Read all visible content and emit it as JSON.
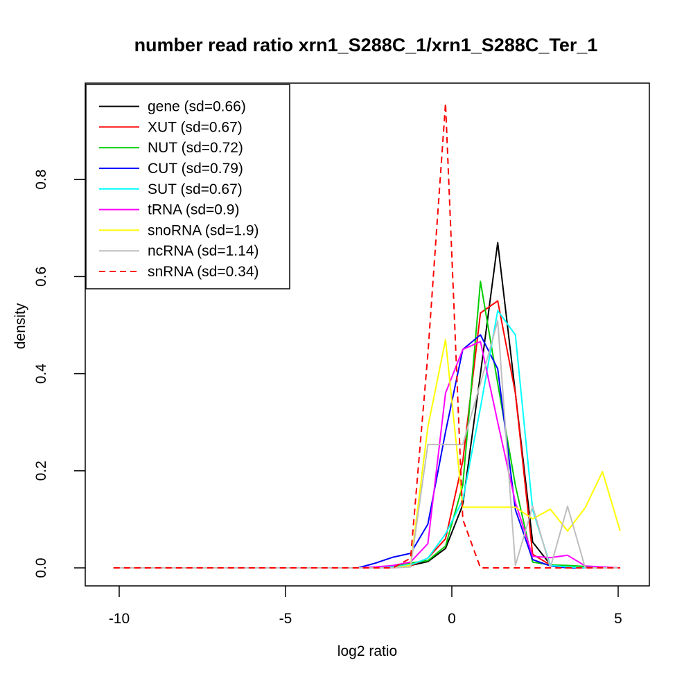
{
  "colors": {
    "background": "#FFFFFF",
    "foreground": "#000000"
  },
  "chart_data": {
    "type": "line",
    "title": "number read ratio xrn1_S288C_1/xrn1_S288C_Ter_1",
    "xlabel": "log2 ratio",
    "ylabel": "density",
    "grid": false,
    "legend_position": "top-left",
    "xlim": [
      -11.0,
      5.95
    ],
    "ylim": [
      0,
      1.0
    ],
    "x_ticks": {
      "values": [
        -10,
        -5,
        0,
        5
      ],
      "labels": [
        "-10",
        "-5",
        "0",
        "5"
      ]
    },
    "y_ticks": {
      "values": [
        0,
        0.2,
        0.4,
        0.6,
        0.8
      ],
      "labels": [
        "0.0",
        "0.2",
        "0.4",
        "0.6",
        "0.8"
      ]
    },
    "x": [
      -10.17,
      -9.64,
      -9.12,
      -8.59,
      -8.07,
      -7.54,
      -7.02,
      -6.49,
      -5.97,
      -5.44,
      -4.92,
      -4.39,
      -3.87,
      -3.34,
      -2.82,
      -2.29,
      -1.77,
      -1.24,
      -0.72,
      -0.19,
      0.33,
      0.86,
      1.38,
      1.91,
      2.43,
      2.96,
      3.48,
      4.01,
      4.53,
      5.06
    ],
    "series": [
      {
        "name": "gene",
        "sd": 0.66,
        "legend_label": "gene (sd=0.66)",
        "color": "#000000",
        "dash": false,
        "values": [
          0,
          0,
          0,
          0,
          0,
          0,
          0,
          0,
          0,
          0,
          0,
          0,
          0,
          0,
          0,
          0,
          0.003,
          0.005,
          0.013,
          0.04,
          0.13,
          0.4,
          0.67,
          0.36,
          0.053,
          0.007,
          0,
          0,
          0,
          0
        ]
      },
      {
        "name": "XUT",
        "sd": 0.67,
        "legend_label": "XUT (sd=0.67)",
        "color": "#FF0000",
        "dash": false,
        "values": [
          0,
          0,
          0,
          0,
          0,
          0,
          0,
          0,
          0,
          0,
          0,
          0,
          0,
          0,
          0,
          0,
          0,
          0.004,
          0.02,
          0.06,
          0.22,
          0.525,
          0.55,
          0.36,
          0.028,
          0.006,
          0.002,
          0,
          0,
          0
        ]
      },
      {
        "name": "NUT",
        "sd": 0.72,
        "legend_label": "NUT (sd=0.72)",
        "color": "#00CD00",
        "dash": false,
        "values": [
          0,
          0,
          0,
          0,
          0,
          0,
          0,
          0,
          0,
          0,
          0,
          0,
          0,
          0,
          0,
          0,
          0.004,
          0.01,
          0.015,
          0.045,
          0.17,
          0.59,
          0.38,
          0.17,
          0.012,
          0.006,
          0.005,
          0.003,
          0,
          0
        ]
      },
      {
        "name": "CUT",
        "sd": 0.79,
        "legend_label": "CUT (sd=0.79)",
        "color": "#0000FF",
        "dash": false,
        "values": [
          0,
          0,
          0,
          0,
          0,
          0,
          0,
          0,
          0,
          0,
          0,
          0,
          0,
          0,
          0,
          0.01,
          0.022,
          0.03,
          0.09,
          0.28,
          0.45,
          0.48,
          0.41,
          0.12,
          0.017,
          0.004,
          0,
          0,
          0,
          0
        ]
      },
      {
        "name": "SUT",
        "sd": 0.67,
        "legend_label": "SUT (sd=0.67)",
        "color": "#00FFFF",
        "dash": false,
        "values": [
          0,
          0,
          0,
          0,
          0,
          0,
          0,
          0,
          0,
          0,
          0,
          0,
          0,
          0,
          0,
          0,
          0.002,
          0.006,
          0.02,
          0.07,
          0.14,
          0.33,
          0.53,
          0.48,
          0.12,
          0.005,
          0.002,
          0,
          0,
          0
        ]
      },
      {
        "name": "tRNA",
        "sd": 0.9,
        "legend_label": "tRNA (sd=0.9)",
        "color": "#FF00FF",
        "dash": false,
        "values": [
          0,
          0,
          0,
          0,
          0,
          0,
          0,
          0,
          0,
          0,
          0,
          0,
          0,
          0,
          0,
          0.002,
          0.005,
          0.012,
          0.05,
          0.36,
          0.45,
          0.466,
          0.3,
          0.135,
          0.024,
          0.021,
          0.026,
          0.004,
          0.002,
          0
        ]
      },
      {
        "name": "snoRNA",
        "sd": 1.9,
        "legend_label": "snoRNA (sd=1.9)",
        "color": "#FFFF00",
        "dash": false,
        "values": [
          0,
          0,
          0,
          0,
          0,
          0,
          0,
          0,
          0,
          0,
          0,
          0,
          0,
          0,
          0,
          0,
          0,
          0.005,
          0.29,
          0.47,
          0.125,
          0.125,
          0.125,
          0.125,
          0.101,
          0.121,
          0.076,
          0.124,
          0.198,
          0.076
        ]
      },
      {
        "name": "ncRNA",
        "sd": 1.14,
        "legend_label": "ncRNA (sd=1.14)",
        "color": "#BEBEBE",
        "dash": false,
        "values": [
          0,
          0,
          0,
          0,
          0,
          0,
          0,
          0,
          0,
          0,
          0,
          0,
          0,
          0,
          0,
          0,
          0,
          0.002,
          0.254,
          0.254,
          0.254,
          0.38,
          0.509,
          0.005,
          0.127,
          0,
          0.127,
          0,
          0,
          0
        ]
      },
      {
        "name": "snRNA",
        "sd": 0.34,
        "legend_label": "snRNA (sd=0.34)",
        "color": "#FF0000",
        "dash": true,
        "values": [
          0,
          0,
          0,
          0,
          0,
          0,
          0,
          0,
          0,
          0,
          0,
          0,
          0,
          0,
          0,
          0,
          0,
          0.02,
          0.44,
          0.957,
          0.1,
          0,
          0,
          0,
          0,
          0,
          0,
          0,
          0,
          0
        ]
      }
    ]
  }
}
